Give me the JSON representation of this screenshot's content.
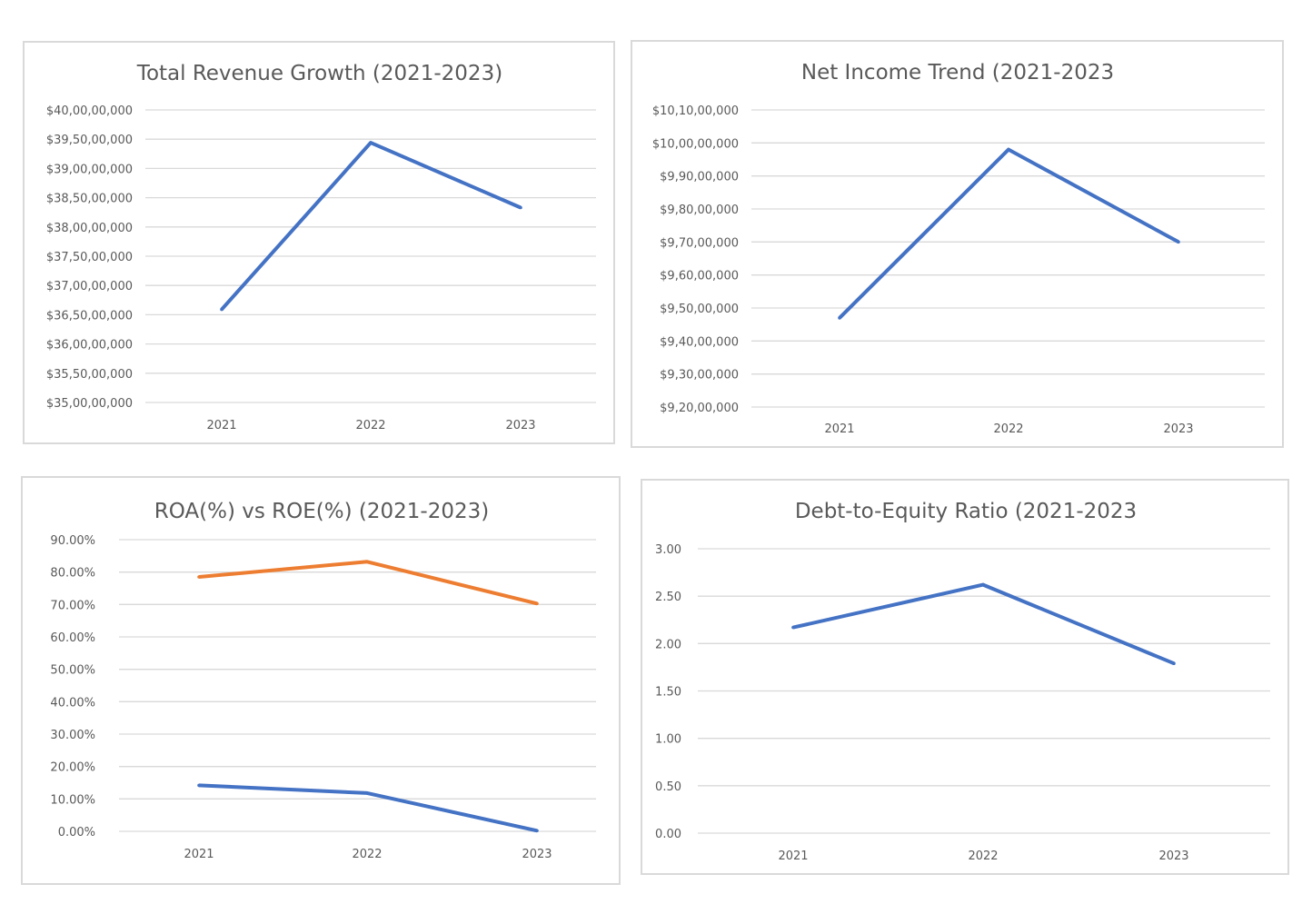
{
  "colors": {
    "blue": "#4472c4",
    "orange": "#ed7d31",
    "grid": "#d9d9d9",
    "text": "#595959"
  },
  "chart_data": [
    {
      "type": "line",
      "title": "Total Revenue Growth (2021-2023)",
      "xlabel": "",
      "ylabel": "",
      "categories": [
        "2021",
        "2022",
        "2023"
      ],
      "series": [
        {
          "color": "#4472c4",
          "values": [
            365900000,
            394400000,
            383300000
          ]
        }
      ],
      "ylim": [
        350000000,
        400000000
      ],
      "yticks": [
        350000000,
        355000000,
        360000000,
        365000000,
        370000000,
        375000000,
        380000000,
        385000000,
        390000000,
        395000000,
        400000000
      ],
      "ytick_labels": [
        "$35,00,00,000",
        "$35,50,00,000",
        "$36,00,00,000",
        "$36,50,00,000",
        "$37,00,00,000",
        "$37,50,00,000",
        "$38,00,00,000",
        "$38,50,00,000",
        "$39,00,00,000",
        "$39,50,00,000",
        "$40,00,00,000"
      ],
      "grid": true,
      "legend": "none"
    },
    {
      "type": "line",
      "title": "Net Income Trend (2021-2023",
      "xlabel": "",
      "ylabel": "",
      "categories": [
        "2021",
        "2022",
        "2023"
      ],
      "series": [
        {
          "color": "#4472c4",
          "values": [
            94700000,
            99800000,
            97000000
          ]
        }
      ],
      "ylim": [
        92000000,
        101000000
      ],
      "yticks": [
        92000000,
        93000000,
        94000000,
        95000000,
        96000000,
        97000000,
        98000000,
        99000000,
        100000000,
        101000000
      ],
      "ytick_labels": [
        "$9,20,00,000",
        "$9,30,00,000",
        "$9,40,00,000",
        "$9,50,00,000",
        "$9,60,00,000",
        "$9,70,00,000",
        "$9,80,00,000",
        "$9,90,00,000",
        "$10,00,00,000",
        "$10,10,00,000"
      ],
      "grid": true,
      "legend": "none"
    },
    {
      "type": "line",
      "title": "ROA(%) vs ROE(%) (2021-2023)",
      "xlabel": "",
      "ylabel": "",
      "categories": [
        "2021",
        "2022",
        "2023"
      ],
      "series": [
        {
          "color": "#4472c4",
          "values": [
            14.2,
            11.8,
            0.2
          ]
        },
        {
          "color": "#ed7d31",
          "values": [
            78.5,
            83.2,
            70.3
          ]
        }
      ],
      "ylim": [
        0,
        90
      ],
      "yticks": [
        0,
        10,
        20,
        30,
        40,
        50,
        60,
        70,
        80,
        90
      ],
      "ytick_labels": [
        "0.00%",
        "10.00%",
        "20.00%",
        "30.00%",
        "40.00%",
        "50.00%",
        "60.00%",
        "70.00%",
        "80.00%",
        "90.00%"
      ],
      "grid": true,
      "legend": "none"
    },
    {
      "type": "line",
      "title": "Debt-to-Equity Ratio (2021-2023",
      "xlabel": "",
      "ylabel": "",
      "categories": [
        "2021",
        "2022",
        "2023"
      ],
      "series": [
        {
          "color": "#4472c4",
          "values": [
            2.17,
            2.62,
            1.79
          ]
        }
      ],
      "ylim": [
        0,
        3
      ],
      "yticks": [
        0,
        0.5,
        1,
        1.5,
        2,
        2.5,
        3
      ],
      "ytick_labels": [
        "0.00",
        "0.50",
        "1.00",
        "1.50",
        "2.00",
        "2.50",
        "3.00"
      ],
      "grid": true,
      "legend": "none"
    }
  ]
}
